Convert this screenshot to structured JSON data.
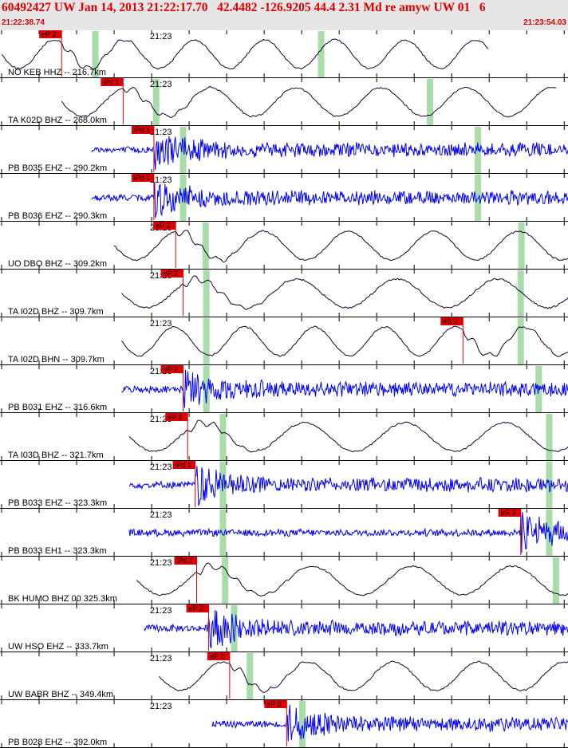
{
  "header": {
    "title": "60492427 UW Jan 14, 2013 21:22:17.70   42.4482 -126.9205 44.4 2.31 Md re amyw UW 01   6",
    "time_start": "21:22:38.74",
    "time_end": "21:23:54.03"
  },
  "colors": {
    "header_bg": "#e6e6e6",
    "header_text": "#e00000",
    "trace_short_period": "#0000ff",
    "trace_broadband": "#1a0033",
    "pick": "#e00000",
    "window": "#a8dca8"
  },
  "chart_data": {
    "type": "line",
    "title": "60492427 UW Jan 14, 2013 21:22:17.70   42.4482 -126.9205 44.4 2.31 Md re amyw UW 01   6",
    "x_range": [
      "21:22:38.74",
      "21:23:54.03"
    ],
    "time_tick_label": "21:23",
    "tick_interval_s": 5,
    "series": [
      {
        "name": "NO KEB HHZ -- 216.7km",
        "kind": "bb",
        "start_s": 0,
        "end_s": 65,
        "pick_s": 8.0,
        "pick_label": "eP 2",
        "window_s": [
          12.5,
          42.6
        ]
      },
      {
        "name": "TA K02D BHZ -- 268.0km",
        "kind": "bb",
        "start_s": 8,
        "end_s": 74,
        "pick_s": 16.2,
        "pick_label": "iPc 1",
        "window_s": [
          20.6,
          57.1
        ]
      },
      {
        "name": "PB B035 EHZ -- 290.2km",
        "kind": "sp",
        "start_s": 12,
        "end_s": 78,
        "pick_s": 20.3,
        "pick_label": "iPd 1",
        "window_s": [
          24.2,
          63.5
        ]
      },
      {
        "name": "PB B036 EHZ -- 290.3km",
        "kind": "sp",
        "start_s": 12,
        "end_s": 78,
        "pick_s": 20.3,
        "pick_label": "iPd 1",
        "window_s": [
          24.2,
          63.5
        ]
      },
      {
        "name": "UO DBO BHZ -- 309.2km",
        "kind": "bb",
        "start_s": 15,
        "end_s": 81,
        "pick_s": 23.2,
        "pick_label": "eP 2",
        "window_s": [
          27.2,
          69.3
        ]
      },
      {
        "name": "TA I02D BHZ -- 309.7km",
        "kind": "bb",
        "start_s": 16,
        "end_s": 81,
        "pick_s": 24.2,
        "pick_label": "eP 2",
        "window_s": [
          27.3,
          69.2
        ]
      },
      {
        "name": "TA I02D BHN -- 309.7km",
        "kind": "bb",
        "start_s": 16,
        "end_s": 81,
        "pick_s": 61.5,
        "pick_label": "eS 2",
        "window_s": [
          27.3,
          69.2
        ]
      },
      {
        "name": "PB B031 EHZ -- 316.6km",
        "kind": "sp",
        "start_s": 16,
        "end_s": 82,
        "pick_s": 24.2,
        "pick_label": "eP 2",
        "window_s": [
          27.3,
          71.6
        ]
      },
      {
        "name": "TA I03D BHZ -- 321.7km",
        "kind": "bb",
        "start_s": 17,
        "end_s": 83,
        "pick_s": 24.8,
        "pick_label": "eP 2",
        "window_s": [
          29.5,
          73.0
        ]
      },
      {
        "name": "PB B033 EHZ -- 323.3km",
        "kind": "sp",
        "start_s": 17,
        "end_s": 83,
        "pick_s": 25.8,
        "pick_label": "iPd 1",
        "window_s": [
          29.5,
          73.0
        ]
      },
      {
        "name": "PB B033 EH1 -- 323.3km",
        "kind": "sp",
        "start_s": 17,
        "end_s": 83,
        "pick_s": 69.2,
        "pick_label": "eS 2",
        "window_s": [
          29.5,
          73.0
        ]
      },
      {
        "name": "BK HUMO BHZ 00 325.3km",
        "kind": "bb",
        "start_s": 18,
        "end_s": 83,
        "pick_s": 26.0,
        "pick_label": "iPd 1",
        "window_s": [
          29.8,
          73.9
        ]
      },
      {
        "name": "UW HSO EHZ -- 333.7km",
        "kind": "sp",
        "start_s": 19,
        "end_s": 85,
        "pick_s": 27.6,
        "pick_label": "eP 2",
        "window_s": [
          31.0,
          76.4
        ]
      },
      {
        "name": "UW BABR BHZ -- 349.4km",
        "kind": "bb",
        "start_s": 21,
        "end_s": 87,
        "pick_s": 30.4,
        "pick_label": "eP 2",
        "window_s": [
          33.1,
          81.1
        ]
      },
      {
        "name": "PB B028 EHZ -- 392.0km",
        "kind": "sp",
        "start_s": 28,
        "end_s": 94,
        "pick_s": 38.0,
        "pick_label": "eP 2",
        "window_s": [
          40.1,
          93.1
        ]
      }
    ]
  }
}
